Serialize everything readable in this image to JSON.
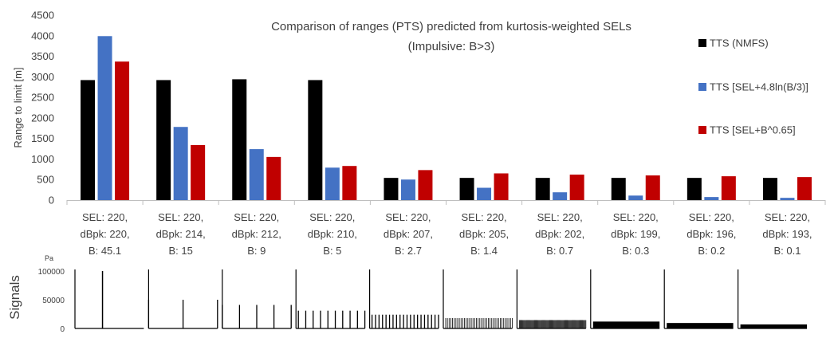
{
  "chart_data": [
    {
      "type": "bar",
      "title": "Comparison of ranges (PTS) predicted from kurtosis-weighted SELs",
      "subtitle": "(Impulsive: B>3)",
      "xlabel": "",
      "ylabel": "Range to limit [m]",
      "ylim": [
        0,
        4500
      ],
      "yticks": [
        0,
        500,
        1000,
        1500,
        2000,
        2500,
        3000,
        3500,
        4000,
        4500
      ],
      "grid": false,
      "legend_position": "right",
      "categories": [
        [
          "SEL: 220,",
          "dBpk: 220,",
          "B: 45.1"
        ],
        [
          "SEL: 220,",
          "dBpk: 214,",
          "B: 15"
        ],
        [
          "SEL: 220,",
          "dBpk: 212,",
          "B: 9"
        ],
        [
          "SEL: 220,",
          "dBpk: 210,",
          "B: 5"
        ],
        [
          "SEL: 220,",
          "dBpk: 207,",
          "B: 2.7"
        ],
        [
          "SEL: 220,",
          "dBpk: 205,",
          "B: 1.4"
        ],
        [
          "SEL: 220,",
          "dBpk: 202,",
          "B: 0.7"
        ],
        [
          "SEL: 220,",
          "dBpk: 199,",
          "B: 0.3"
        ],
        [
          "SEL: 220,",
          "dBpk: 196,",
          "B: 0.2"
        ],
        [
          "SEL: 220,",
          "dBpk: 193,",
          "B: 0.1"
        ]
      ],
      "series": [
        {
          "name": "TTS (NMFS)",
          "color": "#000000",
          "values": [
            2920,
            2920,
            2940,
            2920,
            540,
            540,
            540,
            540,
            540,
            540
          ]
        },
        {
          "name": "TTS [SEL+4.8ln(B/3)]",
          "color": "#4472c4",
          "values": [
            3990,
            1780,
            1240,
            790,
            500,
            300,
            190,
            110,
            75,
            55
          ]
        },
        {
          "name": "TTS [SEL+B^0.65]",
          "color": "#c00000",
          "values": [
            3370,
            1340,
            1050,
            830,
            730,
            650,
            620,
            600,
            580,
            560
          ]
        }
      ]
    },
    {
      "type": "line",
      "title": "",
      "ylabel": "Signals",
      "yunit": "Pa",
      "ylim": [
        0,
        100000
      ],
      "yticks": [
        0,
        50000,
        100000
      ],
      "panels": [
        {
          "pulses": 1,
          "peak": 100000
        },
        {
          "pulses": 3,
          "peak": 50000
        },
        {
          "pulses": 5,
          "peak": 41000
        },
        {
          "pulses": 10,
          "peak": 31000
        },
        {
          "pulses": 20,
          "peak": 24000
        },
        {
          "pulses": 40,
          "peak": 18000
        },
        {
          "pulses": 80,
          "peak": 14500
        },
        {
          "pulses": 160,
          "peak": 12000
        },
        {
          "pulses": 320,
          "peak": 9500
        },
        {
          "pulses": 640,
          "peak": 7000
        }
      ]
    }
  ]
}
